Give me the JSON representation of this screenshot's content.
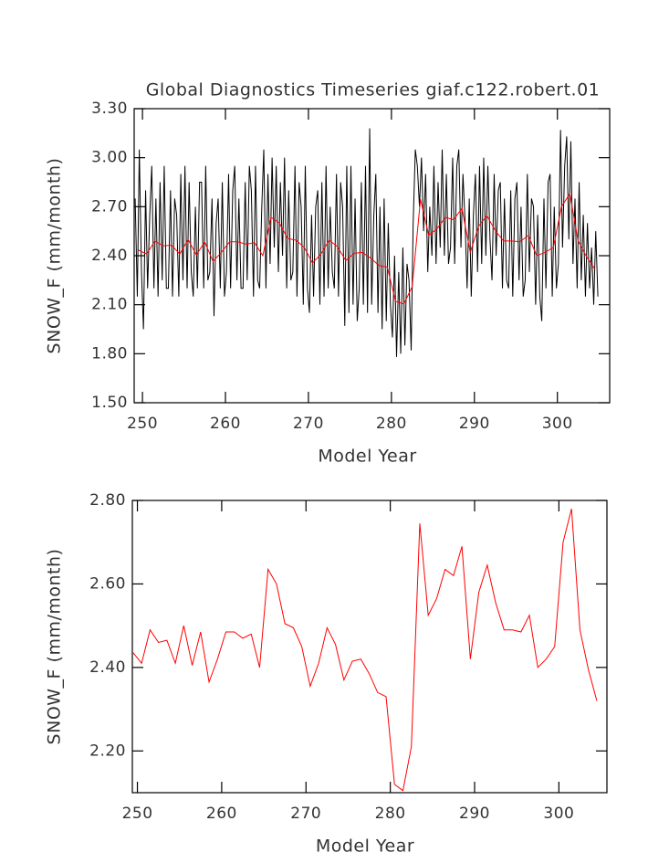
{
  "chart_data": [
    {
      "type": "line",
      "title": "Global Diagnostics Timeseries giaf.c122.robert.01",
      "x_label": "Model Year",
      "y_label": "SNOW_F (mm/month)",
      "xlim": [
        249,
        306.3
      ],
      "ylim": [
        1.5,
        3.3
      ],
      "xticks": [
        250,
        260,
        270,
        280,
        290,
        300
      ],
      "yticks": [
        {
          "value": 1.5,
          "label": "1.50"
        },
        {
          "value": 1.8,
          "label": "1.80"
        },
        {
          "value": 2.1,
          "label": "2.10"
        },
        {
          "value": 2.4,
          "label": "2.40"
        },
        {
          "value": 2.7,
          "label": "2.70"
        },
        {
          "value": 3.0,
          "label": "3.00"
        },
        {
          "value": 3.3,
          "label": "3.30"
        }
      ],
      "series": [
        {
          "color": "#000000",
          "x": [
            249.12,
            249.38,
            249.62,
            249.88,
            250.12,
            250.38,
            250.62,
            250.88,
            251.12,
            251.38,
            251.62,
            251.88,
            252.12,
            252.38,
            252.62,
            252.88,
            253.12,
            253.38,
            253.62,
            253.88,
            254.12,
            254.38,
            254.62,
            254.88,
            255.12,
            255.38,
            255.62,
            255.88,
            256.12,
            256.38,
            256.62,
            256.88,
            257.12,
            257.38,
            257.62,
            257.88,
            258.12,
            258.38,
            258.62,
            258.88,
            259.12,
            259.38,
            259.62,
            259.88,
            260.12,
            260.38,
            260.62,
            260.88,
            261.12,
            261.38,
            261.62,
            261.88,
            262.12,
            262.38,
            262.62,
            262.88,
            263.12,
            263.38,
            263.62,
            263.88,
            264.12,
            264.38,
            264.62,
            264.88,
            265.12,
            265.38,
            265.62,
            265.88,
            266.12,
            266.38,
            266.62,
            266.88,
            267.12,
            267.38,
            267.62,
            267.88,
            268.12,
            268.38,
            268.62,
            268.88,
            269.12,
            269.38,
            269.62,
            269.88,
            270.12,
            270.38,
            270.62,
            270.88,
            271.12,
            271.38,
            271.62,
            271.88,
            272.12,
            272.38,
            272.62,
            272.88,
            273.12,
            273.38,
            273.62,
            273.88,
            274.12,
            274.38,
            274.62,
            274.88,
            275.12,
            275.38,
            275.62,
            275.88,
            276.12,
            276.38,
            276.62,
            276.88,
            277.12,
            277.38,
            277.62,
            277.88,
            278.12,
            278.38,
            278.62,
            278.88,
            279.12,
            279.38,
            279.62,
            279.88,
            280.12,
            280.38,
            280.62,
            280.88,
            281.12,
            281.38,
            281.62,
            281.88,
            282.12,
            282.38,
            282.62,
            282.88,
            283.12,
            283.38,
            283.62,
            283.88,
            284.12,
            284.38,
            284.62,
            284.88,
            285.12,
            285.38,
            285.62,
            285.88,
            286.12,
            286.38,
            286.62,
            286.88,
            287.12,
            287.38,
            287.62,
            287.88,
            288.12,
            288.38,
            288.62,
            288.88,
            289.12,
            289.38,
            289.62,
            289.88,
            290.12,
            290.38,
            290.62,
            290.88,
            291.12,
            291.38,
            291.62,
            291.88,
            292.12,
            292.38,
            292.62,
            292.88,
            293.12,
            293.38,
            293.62,
            293.88,
            294.12,
            294.38,
            294.62,
            294.88,
            295.12,
            295.38,
            295.62,
            295.88,
            296.12,
            296.38,
            296.62,
            296.88,
            297.12,
            297.38,
            297.62,
            297.88,
            298.12,
            298.38,
            298.62,
            298.88,
            299.12,
            299.38,
            299.62,
            299.88,
            300.12,
            300.38,
            300.62,
            300.88,
            301.12,
            301.38,
            301.62,
            301.88,
            302.12,
            302.38,
            302.62,
            302.88,
            303.12,
            303.38,
            303.62,
            303.88,
            304.12,
            304.38,
            304.62,
            304.88
          ],
          "values": [
            2.75,
            2.15,
            3.05,
            2.3,
            1.95,
            2.8,
            2.2,
            2.65,
            2.95,
            2.2,
            2.75,
            2.15,
            2.85,
            2.25,
            2.95,
            2.2,
            2.2,
            2.8,
            2.15,
            2.75,
            2.65,
            2.15,
            2.9,
            2.25,
            2.95,
            2.2,
            2.85,
            2.3,
            2.15,
            2.7,
            2.2,
            2.85,
            2.85,
            2.2,
            2.95,
            2.25,
            2.3,
            2.75,
            2.03,
            2.6,
            2.75,
            2.2,
            2.85,
            2.15,
            2.3,
            2.9,
            2.2,
            2.8,
            2.95,
            2.25,
            2.75,
            2.2,
            2.2,
            2.85,
            2.25,
            2.95,
            2.8,
            2.15,
            2.95,
            2.25,
            2.2,
            2.7,
            3.05,
            2.2,
            2.9,
            2.35,
            3.0,
            2.45,
            2.95,
            2.3,
            2.85,
            2.4,
            3.0,
            2.2,
            2.8,
            2.25,
            2.3,
            2.95,
            2.15,
            2.85,
            2.7,
            2.1,
            2.95,
            2.2,
            2.05,
            2.65,
            2.15,
            2.7,
            2.8,
            2.1,
            2.85,
            2.15,
            2.95,
            2.2,
            2.7,
            2.3,
            2.2,
            2.9,
            2.15,
            2.85,
            2.7,
            1.97,
            2.95,
            2.05,
            2.95,
            2.1,
            2.75,
            2.0,
            2.2,
            2.85,
            2.1,
            2.95,
            2.05,
            3.18,
            2.1,
            2.65,
            2.9,
            2.05,
            2.7,
            1.95,
            2.75,
            2.0,
            2.6,
            2.1,
            1.9,
            2.4,
            1.78,
            2.3,
            1.8,
            2.45,
            1.85,
            2.35,
            2.25,
            1.82,
            2.6,
            3.05,
            2.95,
            2.7,
            3.0,
            2.55,
            2.9,
            2.3,
            2.7,
            2.4,
            2.95,
            2.35,
            2.85,
            2.45,
            3.05,
            2.4,
            2.9,
            2.35,
            2.45,
            3.0,
            2.35,
            2.95,
            3.05,
            2.45,
            2.9,
            2.6,
            2.2,
            2.75,
            2.15,
            2.65,
            2.9,
            2.3,
            2.95,
            2.35,
            3.0,
            2.4,
            2.95,
            2.5,
            2.25,
            2.9,
            2.4,
            2.8,
            2.85,
            2.2,
            2.75,
            2.25,
            2.2,
            2.8,
            2.15,
            2.75,
            2.85,
            2.25,
            2.7,
            2.15,
            2.25,
            2.9,
            2.3,
            2.75,
            2.7,
            2.1,
            2.65,
            2.15,
            2.0,
            2.75,
            2.2,
            2.85,
            2.9,
            2.15,
            2.7,
            2.2,
            2.35,
            3.17,
            2.45,
            2.95,
            3.13,
            2.5,
            3.1,
            2.35,
            2.75,
            2.2,
            2.85,
            2.25,
            2.65,
            2.15,
            2.6,
            2.2,
            2.45,
            2.1,
            2.55,
            2.15
          ]
        },
        {
          "color": "#ff0000",
          "x": [
            249.5,
            250.5,
            251.5,
            252.5,
            253.5,
            254.5,
            255.5,
            256.5,
            257.5,
            258.5,
            259.5,
            260.5,
            261.5,
            262.5,
            263.5,
            264.5,
            265.5,
            266.5,
            267.5,
            268.5,
            269.5,
            270.5,
            271.5,
            272.5,
            273.5,
            274.5,
            275.5,
            276.5,
            277.5,
            278.5,
            279.5,
            280.5,
            281.5,
            282.5,
            283.5,
            284.5,
            285.5,
            286.5,
            287.5,
            288.5,
            289.5,
            290.5,
            291.5,
            292.5,
            293.5,
            294.5,
            295.5,
            296.5,
            297.5,
            298.5,
            299.5,
            300.5,
            301.5,
            302.5,
            303.5,
            304.5
          ],
          "values": [
            2.435,
            2.41,
            2.49,
            2.46,
            2.465,
            2.41,
            2.5,
            2.405,
            2.485,
            2.365,
            2.42,
            2.485,
            2.485,
            2.47,
            2.48,
            2.4,
            2.635,
            2.6,
            2.505,
            2.495,
            2.45,
            2.355,
            2.41,
            2.495,
            2.455,
            2.37,
            2.415,
            2.42,
            2.385,
            2.34,
            2.33,
            2.12,
            2.105,
            2.21,
            2.745,
            2.525,
            2.565,
            2.635,
            2.62,
            2.69,
            2.42,
            2.58,
            2.645,
            2.555,
            2.49,
            2.49,
            2.485,
            2.525,
            2.4,
            2.42,
            2.45,
            2.7,
            2.78,
            2.49,
            2.395,
            2.32
          ]
        }
      ]
    },
    {
      "type": "line",
      "x_label": "Model Year",
      "y_label": "SNOW_F (mm/month)",
      "xlim": [
        249.4,
        305.7
      ],
      "ylim": [
        2.1,
        2.8
      ],
      "xticks": [
        250,
        260,
        270,
        280,
        290,
        300
      ],
      "yticks": [
        {
          "value": 2.2,
          "label": "2.20"
        },
        {
          "value": 2.4,
          "label": "2.40"
        },
        {
          "value": 2.6,
          "label": "2.60"
        },
        {
          "value": 2.8,
          "label": "2.80"
        }
      ],
      "series": [
        {
          "color": "#ff0000",
          "x": [
            249.5,
            250.5,
            251.5,
            252.5,
            253.5,
            254.5,
            255.5,
            256.5,
            257.5,
            258.5,
            259.5,
            260.5,
            261.5,
            262.5,
            263.5,
            264.5,
            265.5,
            266.5,
            267.5,
            268.5,
            269.5,
            270.5,
            271.5,
            272.5,
            273.5,
            274.5,
            275.5,
            276.5,
            277.5,
            278.5,
            279.5,
            280.5,
            281.5,
            282.5,
            283.5,
            284.5,
            285.5,
            286.5,
            287.5,
            288.5,
            289.5,
            290.5,
            291.5,
            292.5,
            293.5,
            294.5,
            295.5,
            296.5,
            297.5,
            298.5,
            299.5,
            300.5,
            301.5,
            302.5,
            303.5,
            304.5
          ],
          "values": [
            2.435,
            2.41,
            2.49,
            2.46,
            2.465,
            2.41,
            2.5,
            2.405,
            2.485,
            2.365,
            2.42,
            2.485,
            2.485,
            2.47,
            2.48,
            2.4,
            2.635,
            2.6,
            2.505,
            2.495,
            2.45,
            2.355,
            2.41,
            2.495,
            2.455,
            2.37,
            2.415,
            2.42,
            2.385,
            2.34,
            2.33,
            2.12,
            2.105,
            2.21,
            2.745,
            2.525,
            2.565,
            2.635,
            2.62,
            2.69,
            2.42,
            2.58,
            2.645,
            2.555,
            2.49,
            2.49,
            2.485,
            2.525,
            2.4,
            2.42,
            2.45,
            2.7,
            2.78,
            2.49,
            2.395,
            2.32
          ]
        }
      ]
    }
  ]
}
